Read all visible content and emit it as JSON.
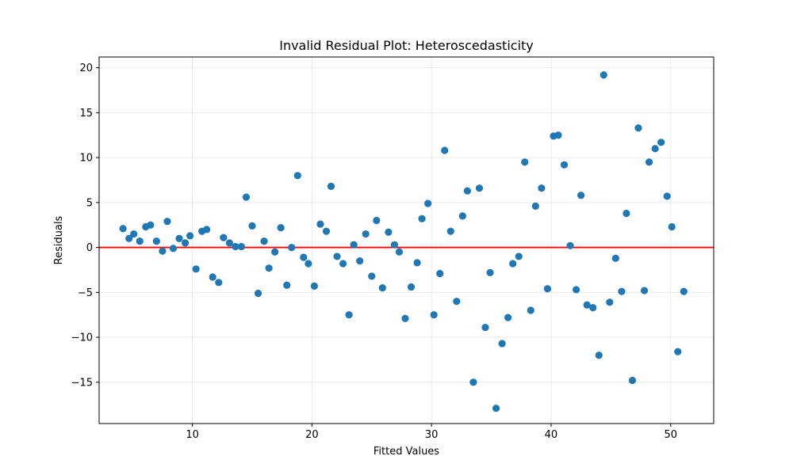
{
  "chart_data": {
    "type": "scatter",
    "title": "Invalid Residual Plot: Heteroscedasticity",
    "xlabel": "Fitted Values",
    "ylabel": "Residuals",
    "xlim": [
      2.2,
      53.6
    ],
    "ylim": [
      -19.6,
      21.2
    ],
    "xticks": [
      10,
      20,
      30,
      40,
      50
    ],
    "yticks": [
      -15,
      -10,
      -5,
      0,
      5,
      10,
      15,
      20
    ],
    "grid": true,
    "reference_line": {
      "y": 0,
      "color": "#ff0000"
    },
    "point_color": "#1f77b4",
    "x": [
      4.2,
      4.7,
      5.1,
      5.6,
      6.1,
      6.5,
      7.0,
      7.5,
      7.9,
      8.4,
      8.9,
      9.4,
      9.8,
      10.3,
      10.8,
      11.2,
      11.7,
      12.2,
      12.6,
      13.1,
      13.6,
      14.1,
      14.5,
      15.0,
      15.5,
      16.0,
      16.4,
      16.9,
      17.4,
      17.9,
      18.3,
      18.8,
      19.3,
      19.7,
      20.2,
      20.7,
      21.2,
      21.6,
      22.1,
      22.6,
      23.1,
      23.5,
      24.0,
      24.5,
      25.0,
      25.4,
      25.9,
      26.4,
      26.9,
      27.3,
      27.8,
      28.3,
      28.8,
      29.2,
      29.7,
      30.2,
      30.7,
      31.1,
      31.6,
      32.1,
      32.6,
      33.0,
      33.5,
      34.0,
      34.5,
      34.9,
      35.4,
      35.9,
      36.4,
      36.8,
      37.3,
      37.8,
      38.3,
      38.7,
      39.2,
      39.7,
      40.2,
      40.6,
      41.1,
      41.6,
      42.1,
      42.5,
      43.0,
      43.5,
      44.0,
      44.4,
      44.9,
      45.4,
      45.9,
      46.3,
      46.8,
      47.3,
      47.8,
      48.2,
      48.7,
      49.2,
      49.7,
      50.1,
      50.6,
      51.1
    ],
    "y": [
      2.1,
      1.0,
      1.5,
      0.7,
      2.3,
      2.5,
      0.7,
      -0.4,
      2.9,
      -0.1,
      1.0,
      0.5,
      1.3,
      -2.4,
      1.8,
      2.0,
      -3.3,
      -3.9,
      1.1,
      0.5,
      0.1,
      0.1,
      5.6,
      2.4,
      -5.1,
      0.7,
      -2.3,
      -0.5,
      2.2,
      -4.2,
      0.0,
      8.0,
      -1.1,
      -1.8,
      -4.3,
      2.6,
      1.8,
      6.8,
      -1.0,
      -1.8,
      -7.5,
      0.3,
      -1.5,
      1.5,
      -3.2,
      3.0,
      -4.5,
      1.7,
      0.3,
      -0.5,
      -7.9,
      -4.4,
      -1.7,
      3.2,
      4.9,
      -7.5,
      -2.9,
      10.8,
      1.8,
      -6.0,
      3.5,
      6.3,
      -15.0,
      6.6,
      -8.9,
      -2.8,
      -17.9,
      -10.7,
      -7.8,
      -1.8,
      -1.0,
      9.5,
      -7.0,
      4.6,
      6.6,
      -4.6,
      12.4,
      12.5,
      9.2,
      0.2,
      -4.7,
      5.8,
      -6.4,
      -6.7,
      -12.0,
      19.2,
      -6.1,
      -1.2,
      -4.9,
      3.8,
      -14.8,
      13.3,
      -4.8,
      9.5,
      11.0,
      11.7,
      5.7,
      2.3,
      -11.6,
      -4.9
    ]
  }
}
